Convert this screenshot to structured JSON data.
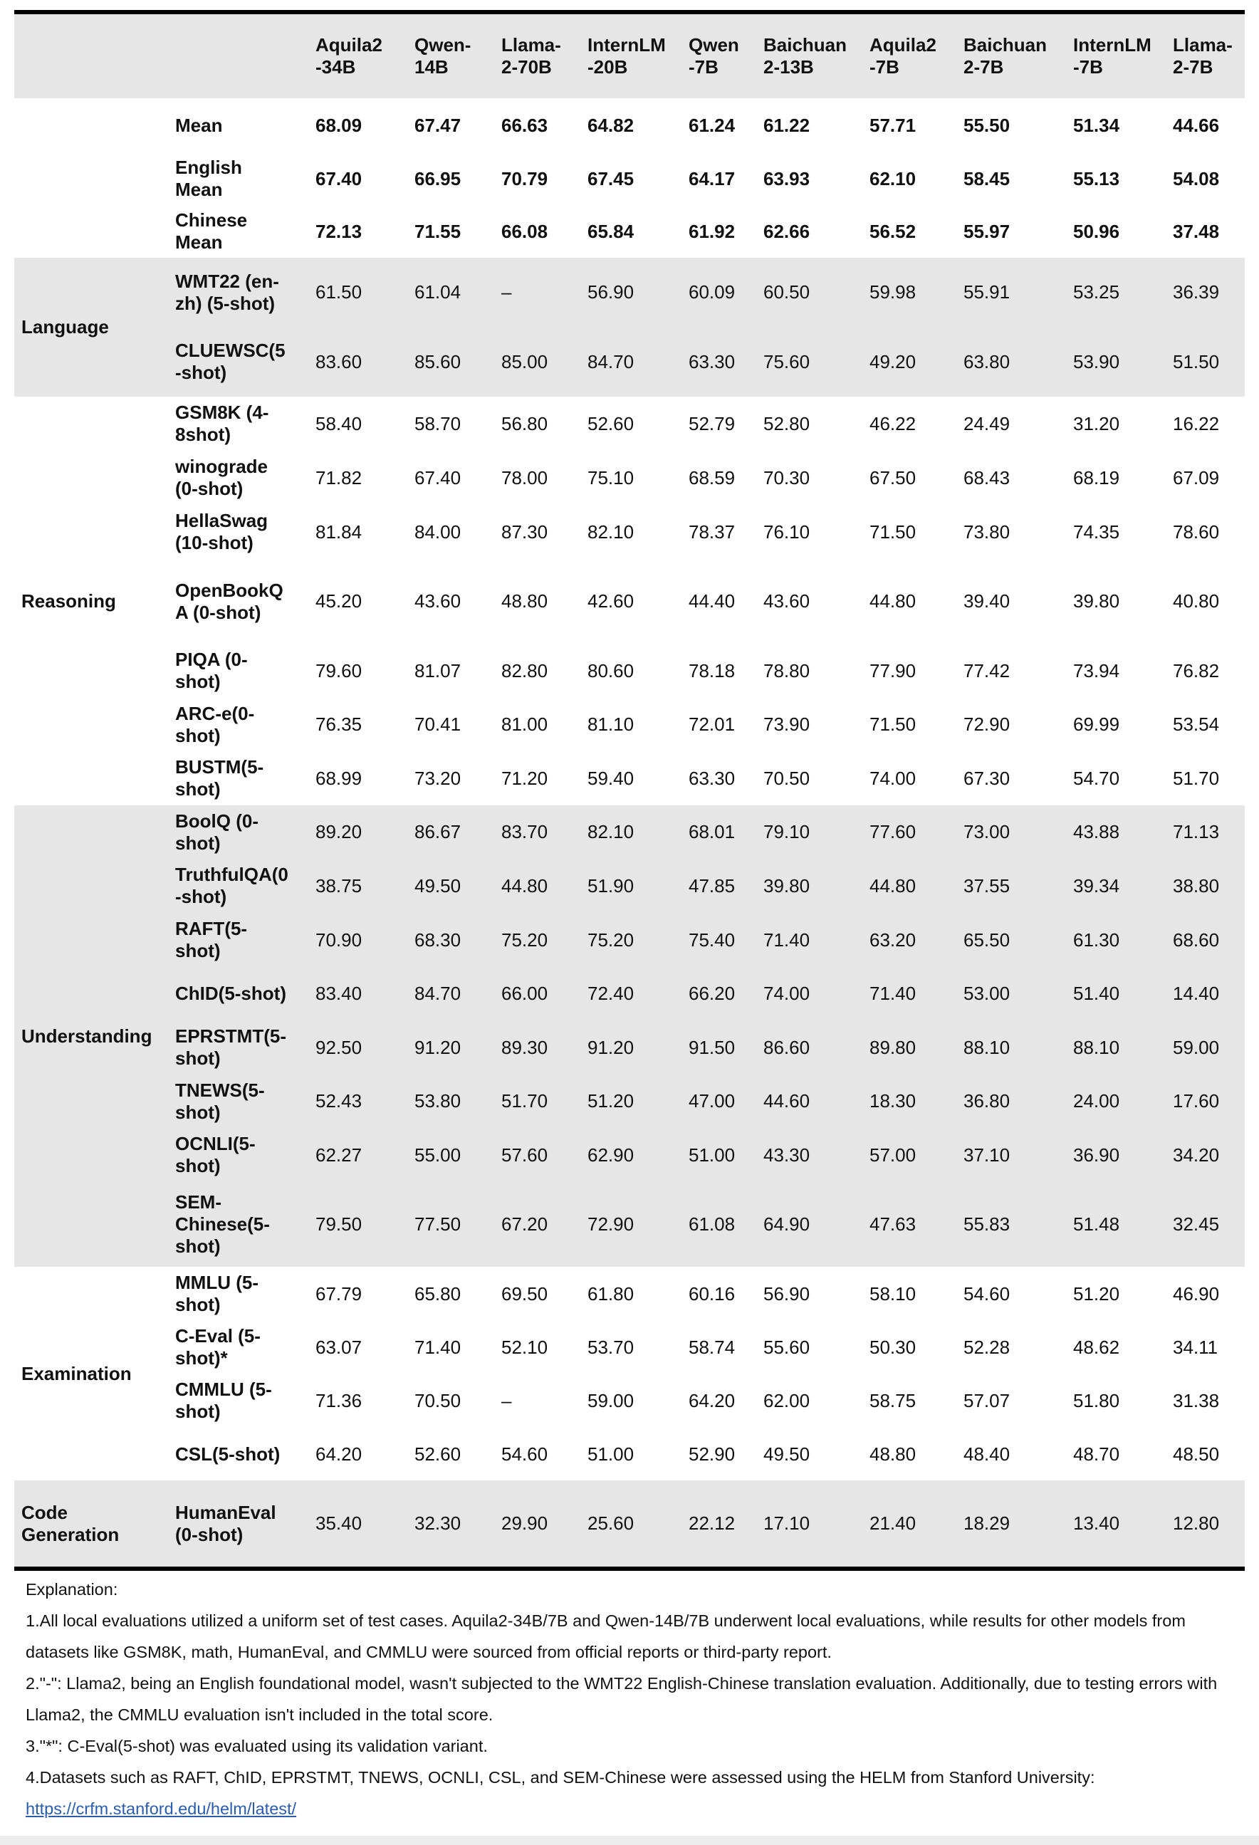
{
  "columns": [
    "",
    "",
    "Aquila2\n-34B",
    "Qwen-\n14B",
    "Llama-\n2-70B",
    "InternLM\n-20B",
    "Qwen\n-7B",
    "Baichuan\n2-13B",
    "Aquila2\n-7B",
    "Baichuan\n2-7B",
    "InternLM\n-7B",
    "Llama-\n2-7B"
  ],
  "groups": [
    {
      "category": "",
      "gray": false,
      "mean": true,
      "rows": [
        {
          "name": "Mean",
          "h": 76,
          "values": [
            "68.09",
            "67.47",
            "66.63",
            "64.82",
            "61.24",
            "61.22",
            "57.71",
            "55.50",
            "51.34",
            "44.66"
          ]
        },
        {
          "name": "English\nMean",
          "h": 74,
          "values": [
            "67.40",
            "66.95",
            "70.79",
            "67.45",
            "64.17",
            "63.93",
            "62.10",
            "58.45",
            "55.13",
            "54.08"
          ]
        },
        {
          "name": "Chinese\nMean",
          "h": 74,
          "values": [
            "72.13",
            "71.55",
            "66.08",
            "65.84",
            "61.92",
            "62.66",
            "56.52",
            "55.97",
            "50.96",
            "37.48"
          ]
        }
      ]
    },
    {
      "category": "Language",
      "gray": true,
      "rows": [
        {
          "name": "WMT22 (en-\nzh) (5-shot)",
          "h": 97,
          "values": [
            "61.50",
            "61.04",
            "–",
            "56.90",
            "60.09",
            "60.50",
            "59.98",
            "55.91",
            "53.25",
            "36.39"
          ]
        },
        {
          "name": "CLUEWSC(5\n-shot)",
          "h": 98,
          "values": [
            "83.60",
            "85.60",
            "85.00",
            "84.70",
            "63.30",
            "75.60",
            "49.20",
            "63.80",
            "53.90",
            "51.50"
          ]
        }
      ]
    },
    {
      "category": "Reasoning",
      "gray": false,
      "rows": [
        {
          "name": "GSM8K (4-\n8shot)",
          "h": 76,
          "values": [
            "58.40",
            "58.70",
            "56.80",
            "52.60",
            "52.79",
            "52.80",
            "46.22",
            "24.49",
            "31.20",
            "16.22"
          ]
        },
        {
          "name": "winograde\n(0-shot)",
          "h": 76,
          "values": [
            "71.82",
            "67.40",
            "78.00",
            "75.10",
            "68.59",
            "70.30",
            "67.50",
            "68.43",
            "68.19",
            "67.09"
          ]
        },
        {
          "name": "HellaSwag\n(10-shot)",
          "h": 76,
          "values": [
            "81.84",
            "84.00",
            "87.30",
            "82.10",
            "78.37",
            "76.10",
            "71.50",
            "73.80",
            "74.35",
            "78.60"
          ]
        },
        {
          "name": "OpenBookQ\nA (0-shot)",
          "h": 119,
          "values": [
            "45.20",
            "43.60",
            "48.80",
            "42.60",
            "44.40",
            "43.60",
            "44.80",
            "39.40",
            "39.80",
            "40.80"
          ]
        },
        {
          "name": "PIQA (0-\nshot)",
          "h": 76,
          "values": [
            "79.60",
            "81.07",
            "82.80",
            "80.60",
            "78.18",
            "78.80",
            "77.90",
            "77.42",
            "73.94",
            "76.82"
          ]
        },
        {
          "name": "ARC-e(0-\nshot)",
          "h": 75,
          "values": [
            "76.35",
            "70.41",
            "81.00",
            "81.10",
            "72.01",
            "73.90",
            "71.50",
            "72.90",
            "69.99",
            "53.54"
          ]
        },
        {
          "name": "BUSTM(5-\nshot)",
          "h": 76,
          "values": [
            "68.99",
            "73.20",
            "71.20",
            "59.40",
            "63.30",
            "70.50",
            "74.00",
            "67.30",
            "54.70",
            "51.70"
          ]
        }
      ]
    },
    {
      "category": "Understanding",
      "gray": true,
      "rows": [
        {
          "name": "BoolQ (0-\nshot)",
          "h": 75,
          "values": [
            "89.20",
            "86.67",
            "83.70",
            "82.10",
            "68.01",
            "79.10",
            "77.60",
            "73.00",
            "43.88",
            "71.13"
          ]
        },
        {
          "name": "TruthfulQA(0\n-shot)",
          "h": 76,
          "values": [
            "38.75",
            "49.50",
            "44.80",
            "51.90",
            "47.85",
            "39.80",
            "44.80",
            "37.55",
            "39.34",
            "38.80"
          ]
        },
        {
          "name": "RAFT(5-\nshot)",
          "h": 76,
          "values": [
            "70.90",
            "68.30",
            "75.20",
            "75.20",
            "75.40",
            "71.40",
            "63.20",
            "65.50",
            "61.30",
            "68.60"
          ]
        },
        {
          "name": "ChID(5-shot)",
          "h": 75,
          "values": [
            "83.40",
            "84.70",
            "66.00",
            "72.40",
            "66.20",
            "74.00",
            "71.40",
            "53.00",
            "51.40",
            "14.40"
          ]
        },
        {
          "name": "EPRSTMT(5-\nshot)",
          "h": 76,
          "values": [
            "92.50",
            "91.20",
            "89.30",
            "91.20",
            "91.50",
            "86.60",
            "89.80",
            "88.10",
            "88.10",
            "59.00"
          ]
        },
        {
          "name": "TNEWS(5-\nshot)",
          "h": 75,
          "values": [
            "52.43",
            "53.80",
            "51.70",
            "51.20",
            "47.00",
            "44.60",
            "18.30",
            "36.80",
            "24.00",
            "17.60"
          ]
        },
        {
          "name": "OCNLI(5-\nshot)",
          "h": 76,
          "values": [
            "62.27",
            "55.00",
            "57.60",
            "62.90",
            "51.00",
            "43.30",
            "57.00",
            "37.10",
            "36.90",
            "34.20"
          ]
        },
        {
          "name": "SEM-\nChinese(5-\nshot)",
          "h": 119,
          "values": [
            "79.50",
            "77.50",
            "67.20",
            "72.90",
            "61.08",
            "64.90",
            "47.63",
            "55.83",
            "51.48",
            "32.45"
          ]
        }
      ]
    },
    {
      "category": "Examination",
      "gray": false,
      "rows": [
        {
          "name": "MMLU (5-\nshot)",
          "h": 76,
          "values": [
            "67.79",
            "65.80",
            "69.50",
            "61.80",
            "60.16",
            "56.90",
            "58.10",
            "54.60",
            "51.20",
            "46.90"
          ]
        },
        {
          "name": "C-Eval (5-\nshot)*",
          "h": 74,
          "values": [
            "63.07",
            "71.40",
            "52.10",
            "53.70",
            "58.74",
            "55.60",
            "50.30",
            "52.28",
            "48.62",
            "34.11"
          ]
        },
        {
          "name": "CMMLU (5-\nshot)",
          "h": 76,
          "values": [
            "71.36",
            "70.50",
            "–",
            "59.00",
            "64.20",
            "62.00",
            "58.75",
            "57.07",
            "51.80",
            "31.38"
          ]
        },
        {
          "name": "CSL(5-shot)",
          "h": 74,
          "values": [
            "64.20",
            "52.60",
            "54.60",
            "51.00",
            "52.90",
            "49.50",
            "48.80",
            "48.40",
            "48.70",
            "48.50"
          ]
        }
      ]
    },
    {
      "category": "Code\nGeneration",
      "gray": true,
      "rows": [
        {
          "name": "HumanEval\n(0-shot)",
          "h": 124,
          "values": [
            "35.40",
            "32.30",
            "29.90",
            "25.60",
            "22.12",
            "17.10",
            "21.40",
            "18.29",
            "13.40",
            "12.80"
          ]
        }
      ]
    }
  ],
  "explanation": {
    "title": "Explanation:",
    "lines": [
      "1.All local evaluations utilized a uniform set of test cases. Aquila2-34B/7B and Qwen-14B/7B underwent local evaluations, while results for other models from datasets like GSM8K, math, HumanEval, and CMMLU were sourced from official reports or third-party report.",
      "2.\"-\": Llama2, being an English foundational model, wasn't subjected to the WMT22 English-Chinese translation evaluation. Additionally, due to testing errors with Llama2, the CMMLU evaluation isn't included in the total score.",
      "3.\"*\": C-Eval(5-shot) was evaluated using its validation variant.",
      "4.Datasets such as RAFT, ChID, EPRSTMT, TNEWS, OCNLI, CSL, and SEM-Chinese were assessed using the HELM from Stanford University:"
    ],
    "link": "https://crfm.stanford.edu/helm/latest/"
  },
  "colors": {
    "gray_band": "#e6e6e6",
    "link": "#2a5db0"
  }
}
